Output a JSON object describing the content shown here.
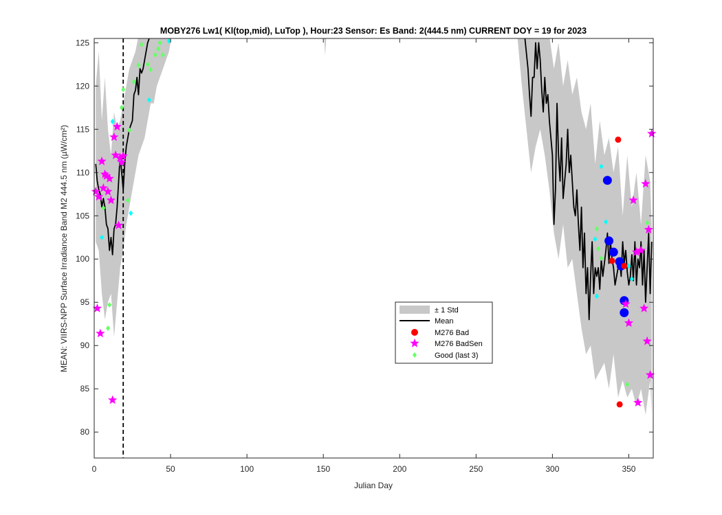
{
  "chart_data": {
    "type": "line",
    "title": "MOBY276   Lw1( Kl(top,mid), LuTop ),   Hour:23 Sensor: Es Band: 2(444.5 nm)   CURRENT DOY = 19 for 2023",
    "xlabel": "Julian Day",
    "ylabel": "MEAN: VIIRS-NPP Surface Irradiance Band M2 444.5 nm (µW/cm²)",
    "xlim": [
      0,
      366
    ],
    "ylim": [
      77,
      125.5
    ],
    "xticks": [
      0,
      50,
      100,
      150,
      200,
      250,
      300,
      350
    ],
    "yticks": [
      80,
      85,
      90,
      95,
      100,
      105,
      110,
      115,
      120,
      125
    ],
    "current_doy": 19,
    "grid": false,
    "legend_placement": "center-right",
    "legend": [
      "± 1 Std",
      "Mean",
      "M276 Bad",
      "M276 BadSen",
      "Good (last 3)"
    ],
    "colors": {
      "std_fill": "#c8c8c8",
      "mean": "#000000",
      "bad": "#ff0000",
      "badsen": "#ff00ff",
      "good": "#66ff66",
      "cyan": "#00ffff",
      "blue": "#0000ff"
    },
    "series": [
      {
        "name": "Mean",
        "segments": [
          {
            "x": [
              1,
              2,
              3,
              4,
              5,
              6,
              7,
              8,
              9,
              10,
              11,
              12,
              13,
              14,
              15,
              16,
              17,
              18,
              19,
              20,
              21,
              22,
              23,
              24,
              25,
              26,
              27,
              28,
              29,
              30,
              31,
              32,
              33,
              34,
              35,
              36,
              37,
              38,
              39,
              40,
              41,
              42,
              43,
              44,
              45,
              46,
              47,
              48,
              49,
              50
            ],
            "y": [
              111,
              109,
              108,
              107.5,
              106,
              107,
              106,
              104,
              103.5,
              101,
              102.5,
              100.5,
              103.5,
              104,
              106,
              109,
              112,
              110,
              108,
              111,
              113,
              114,
              115,
              115.5,
              116,
              119,
              119.5,
              121,
              119,
              122,
              121.5,
              122,
              123,
              124,
              125,
              125.5,
              125.8,
              125.8,
              125.8,
              125.8,
              125.8,
              125.8,
              125.8,
              125.8,
              125.8,
              125.8,
              125.8,
              125.8,
              125.8,
              125.8
            ]
          },
          {
            "x": [
              280,
              282,
              284,
              285,
              286,
              287,
              288,
              289,
              290,
              291,
              292,
              293,
              294,
              295,
              296,
              297,
              298,
              299,
              300,
              301,
              302,
              303,
              304,
              305,
              306,
              307,
              308,
              309,
              310,
              311,
              312,
              313,
              314,
              315,
              316,
              317,
              318,
              319,
              320,
              321,
              322,
              323,
              324,
              325,
              326,
              327,
              328,
              329,
              330,
              331,
              332,
              333,
              334,
              335,
              336,
              337,
              338,
              339,
              340,
              341,
              342,
              343,
              344,
              345,
              346,
              347,
              348,
              349,
              350,
              351,
              352,
              353,
              354,
              355,
              356,
              357,
              358,
              359,
              360,
              361,
              362,
              363,
              364,
              365
            ],
            "y": [
              125.8,
              125.5,
              122,
              119,
              116.5,
              121,
              121,
              125,
              122,
              125,
              123,
              119.5,
              117,
              121,
              118,
              119,
              116,
              114,
              112,
              104,
              108,
              118,
              112,
              109,
              114,
              107,
              109,
              111,
              115,
              110,
              112,
              109,
              106,
              105,
              108,
              104,
              101,
              106,
              99,
              103,
              96,
              99,
              93,
              98,
              102,
              96,
              99,
              98,
              99,
              96.5,
              100,
              98,
              99.5,
              101,
              103,
              99.5,
              102,
              100,
              99,
              97,
              98,
              99,
              100,
              98,
              102,
              99.5,
              101,
              98.5,
              97,
              98,
              100.5,
              97.5,
              102,
              97,
              100,
              99,
              102,
              97,
              101,
              95,
              99,
              103,
              96,
              102
            ]
          }
        ]
      },
      {
        "name": "± 1 Std",
        "segments": [
          {
            "x": [
              1,
              3,
              5,
              7,
              9,
              11,
              13,
              15,
              17,
              19,
              21,
              23,
              25,
              27,
              29,
              31,
              33,
              35,
              37,
              39,
              41,
              43,
              45,
              47,
              49,
              50
            ],
            "upper": [
              120,
              124,
              116,
              121,
              115,
              112,
              117,
              115,
              116,
              118,
              120,
              122,
              123,
              124,
              125.8,
              125.8,
              125.8,
              125.8,
              125.8,
              125.8,
              125.8,
              125.8,
              125.8,
              125.8,
              125.8,
              125.8
            ],
            "lower": [
              102,
              101,
              96,
              93,
              95,
              96,
              91,
              95,
              99,
              101,
              104,
              106,
              108,
              110,
              112,
              113,
              114,
              116,
              118,
              118,
              120,
              121,
              122,
              123,
              124,
              125
            ]
          },
          {
            "x": [
              274,
              277,
              280,
              283,
              286,
              289,
              292,
              295,
              298,
              301,
              304,
              307,
              310,
              313,
              316,
              319,
              322,
              325,
              328,
              331,
              334,
              337,
              340,
              343,
              346,
              349,
              352,
              355,
              358,
              361,
              364,
              365
            ],
            "upper": [
              125.8,
              125.8,
              125.8,
              125.8,
              125.8,
              125.8,
              125.8,
              125.8,
              125.8,
              122,
              125,
              120,
              123,
              119,
              121,
              117,
              115,
              118,
              111,
              116,
              112,
              114,
              110,
              113,
              105,
              112,
              106,
              110,
              104,
              112,
              109,
              104
            ],
            "lower": [
              125.5,
              125.8,
              120,
              115,
              110,
              113,
              115,
              112,
              108,
              103,
              100,
              104,
              99,
              100,
              96,
              92,
              89,
              90,
              86,
              87,
              88,
              85,
              89,
              84,
              86,
              84,
              85,
              83,
              85,
              82,
              86,
              82
            ]
          }
        ]
      },
      {
        "name": "M276 Bad",
        "x": [
          339,
          343,
          344,
          347
        ],
        "y": [
          99.8,
          113.8,
          83.2,
          99.2
        ]
      },
      {
        "name": "M276 BadSen",
        "x": [
          1,
          2,
          3,
          4,
          5,
          6,
          7,
          8,
          9,
          10,
          11,
          12,
          13,
          14,
          15,
          16,
          17,
          18,
          19,
          348,
          350,
          353,
          355,
          356,
          358,
          360,
          361,
          362,
          363,
          364,
          365
        ],
        "y": [
          107.8,
          94.3,
          107.2,
          91.4,
          111.3,
          108.2,
          109.8,
          109.6,
          107.8,
          109.3,
          106.8,
          83.7,
          114.1,
          112.0,
          115.3,
          103.9,
          111.7,
          111.2,
          111.9,
          94.8,
          92.6,
          106.8,
          100.8,
          83.4,
          101.0,
          94.3,
          108.7,
          90.5,
          103.4,
          86.6,
          114.5
        ]
      },
      {
        "name": "Good (last 3)",
        "x": [
          6,
          9,
          10,
          18,
          19,
          22,
          23,
          26,
          29,
          31,
          35,
          37,
          40,
          42,
          43,
          45,
          329,
          330,
          332,
          349,
          350,
          362
        ],
        "y": [
          105.9,
          92.0,
          94.7,
          117.5,
          119.6,
          106.8,
          114.9,
          120.5,
          122.4,
          124.8,
          122.5,
          121.9,
          123.6,
          124.3,
          125.0,
          123.6,
          103.5,
          101.2,
          100.1,
          85.5,
          99.2,
          104.2
        ]
      },
      {
        "name": "cyan",
        "x": [
          5,
          12,
          17,
          24,
          36,
          49,
          328,
          329,
          332,
          335,
          350,
          352
        ],
        "y": [
          102.5,
          115.9,
          111.3,
          105.3,
          118.4,
          125.2,
          102.3,
          95.7,
          110.7,
          104.3,
          99.2,
          97.7
        ]
      },
      {
        "name": "blue",
        "x": [
          336,
          337,
          340,
          344,
          345,
          347,
          347
        ],
        "y": [
          109.1,
          102.1,
          100.8,
          99.7,
          99.2,
          93.8,
          95.2
        ]
      }
    ]
  }
}
